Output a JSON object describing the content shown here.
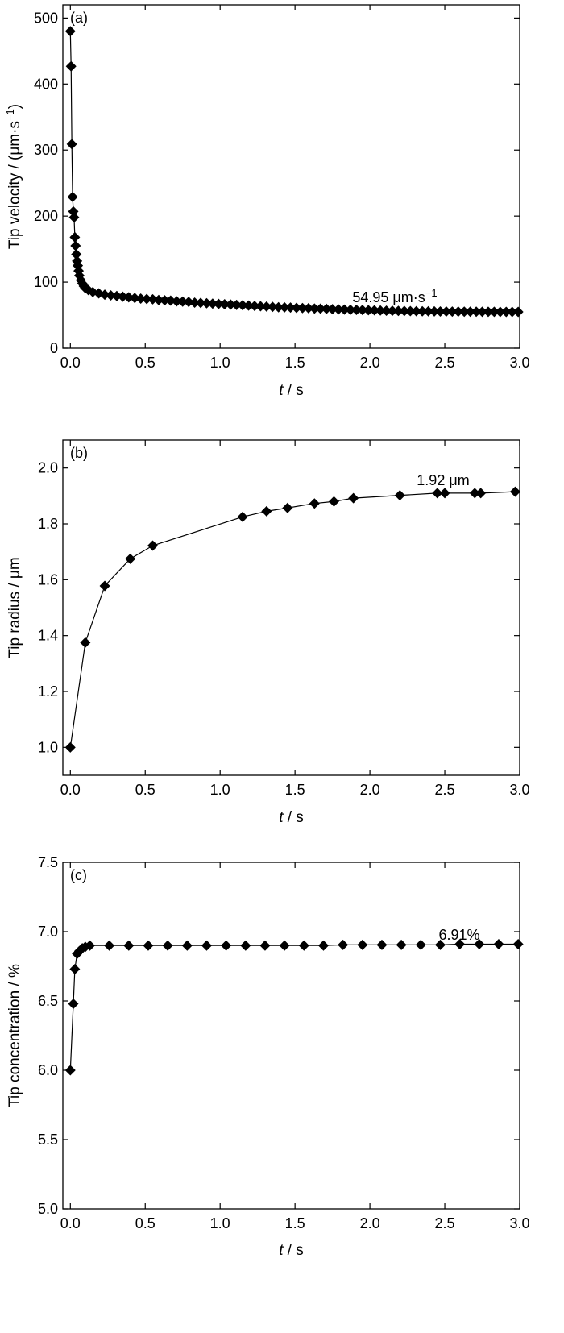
{
  "chart_data": [
    {
      "type": "line",
      "panel_label": "(a)",
      "xlabel_var": "t",
      "xlabel_unit": " / s",
      "ylabel": "Tip velocity / (μm·s",
      "ylabel_sup": "−1",
      "ylabel_close": ")",
      "xlim": [
        -0.05,
        3.0
      ],
      "ylim": [
        0,
        520
      ],
      "xticks": [
        0.0,
        0.5,
        1.0,
        1.5,
        2.0,
        2.5,
        3.0
      ],
      "xtick_labels": [
        "0.0",
        "0.5",
        "1.0",
        "1.5",
        "2.0",
        "2.5",
        "3.0"
      ],
      "yticks": [
        0,
        100,
        200,
        300,
        400,
        500
      ],
      "ytick_labels": [
        "0",
        "100",
        "200",
        "300",
        "400",
        "500"
      ],
      "annotation": "54.95 μm·s",
      "annotation_sup": "−1",
      "marker": "diamond",
      "x": [
        0.0,
        0.005,
        0.01,
        0.015,
        0.02,
        0.025,
        0.03,
        0.035,
        0.04,
        0.045,
        0.05,
        0.055,
        0.06,
        0.07,
        0.08,
        0.09,
        0.1,
        0.12,
        0.15,
        0.19,
        0.23,
        0.27,
        0.31,
        0.35,
        0.39,
        0.43,
        0.47,
        0.51,
        0.55,
        0.59,
        0.63,
        0.67,
        0.71,
        0.75,
        0.79,
        0.83,
        0.87,
        0.91,
        0.95,
        0.99,
        1.03,
        1.07,
        1.11,
        1.15,
        1.19,
        1.23,
        1.27,
        1.31,
        1.35,
        1.39,
        1.43,
        1.47,
        1.51,
        1.55,
        1.59,
        1.63,
        1.67,
        1.71,
        1.75,
        1.79,
        1.83,
        1.87,
        1.91,
        1.95,
        1.99,
        2.03,
        2.07,
        2.11,
        2.15,
        2.19,
        2.23,
        2.27,
        2.31,
        2.35,
        2.39,
        2.43,
        2.47,
        2.51,
        2.55,
        2.59,
        2.63,
        2.67,
        2.71,
        2.75,
        2.79,
        2.83,
        2.87,
        2.91,
        2.95,
        2.99
      ],
      "y": [
        480,
        427,
        309,
        229,
        207,
        198,
        168,
        155,
        142,
        132,
        125,
        117,
        110,
        103,
        98,
        94,
        91,
        88,
        85,
        83,
        81,
        80,
        79,
        78,
        77,
        76,
        75,
        74.5,
        74,
        73,
        72.5,
        72,
        71,
        70.5,
        70,
        69,
        68.5,
        68,
        67.5,
        67,
        66.5,
        66,
        65.5,
        65,
        64.5,
        64,
        63.5,
        63,
        62.5,
        62,
        61.8,
        61.5,
        61,
        60.8,
        60.5,
        60,
        59.8,
        59.5,
        59,
        58.8,
        58.5,
        58.2,
        58,
        57.8,
        57.5,
        57.3,
        57,
        56.8,
        56.6,
        56.5,
        56.3,
        56.1,
        56,
        55.9,
        55.8,
        55.7,
        55.6,
        55.5,
        55.4,
        55.35,
        55.3,
        55.25,
        55.2,
        55.15,
        55.1,
        55.05,
        55.0,
        54.98,
        54.96,
        54.95
      ]
    },
    {
      "type": "line",
      "panel_label": "(b)",
      "xlabel_var": "t",
      "xlabel_unit": " / s",
      "ylabel": "Tip radius / μm",
      "xlim": [
        -0.05,
        3.0
      ],
      "ylim": [
        0.9,
        2.1
      ],
      "xticks": [
        0.0,
        0.5,
        1.0,
        1.5,
        2.0,
        2.5,
        3.0
      ],
      "xtick_labels": [
        "0.0",
        "0.5",
        "1.0",
        "1.5",
        "2.0",
        "2.5",
        "3.0"
      ],
      "yticks": [
        1.0,
        1.2,
        1.4,
        1.6,
        1.8,
        2.0
      ],
      "ytick_labels": [
        "1.0",
        "1.2",
        "1.4",
        "1.6",
        "1.8",
        "2.0"
      ],
      "annotation": "1.92 μm",
      "marker": "diamond",
      "x": [
        0.0,
        0.1,
        0.23,
        0.4,
        0.55,
        1.15,
        1.31,
        1.45,
        1.63,
        1.76,
        1.89,
        2.2,
        2.45,
        2.5,
        2.7,
        2.74,
        2.97
      ],
      "y": [
        1.0,
        1.375,
        1.578,
        1.675,
        1.722,
        1.825,
        1.845,
        1.857,
        1.873,
        1.88,
        1.892,
        1.902,
        1.91,
        1.91,
        1.91,
        1.91,
        1.915
      ]
    },
    {
      "type": "line",
      "panel_label": "(c)",
      "xlabel_var": "t",
      "xlabel_unit": " / s",
      "ylabel": "Tip concentration / %",
      "xlim": [
        -0.05,
        3.0
      ],
      "ylim": [
        5.0,
        7.5
      ],
      "xticks": [
        0.0,
        0.5,
        1.0,
        1.5,
        2.0,
        2.5,
        3.0
      ],
      "xtick_labels": [
        "0.0",
        "0.5",
        "1.0",
        "1.5",
        "2.0",
        "2.5",
        "3.0"
      ],
      "yticks": [
        5.0,
        5.5,
        6.0,
        6.5,
        7.0,
        7.5
      ],
      "ytick_labels": [
        "5.0",
        "5.5",
        "6.0",
        "6.5",
        "7.0",
        "7.5"
      ],
      "annotation": "6.91%",
      "marker": "diamond",
      "x": [
        0.0,
        0.02,
        0.03,
        0.045,
        0.06,
        0.08,
        0.1,
        0.13,
        0.26,
        0.39,
        0.52,
        0.65,
        0.78,
        0.91,
        1.04,
        1.17,
        1.3,
        1.43,
        1.56,
        1.69,
        1.82,
        1.95,
        2.08,
        2.21,
        2.34,
        2.47,
        2.6,
        2.73,
        2.86,
        2.99
      ],
      "y": [
        6.0,
        6.48,
        6.73,
        6.84,
        6.86,
        6.88,
        6.89,
        6.9,
        6.9,
        6.9,
        6.9,
        6.9,
        6.9,
        6.9,
        6.9,
        6.9,
        6.9,
        6.9,
        6.9,
        6.9,
        6.905,
        6.905,
        6.905,
        6.905,
        6.905,
        6.905,
        6.91,
        6.91,
        6.91,
        6.91
      ]
    }
  ]
}
